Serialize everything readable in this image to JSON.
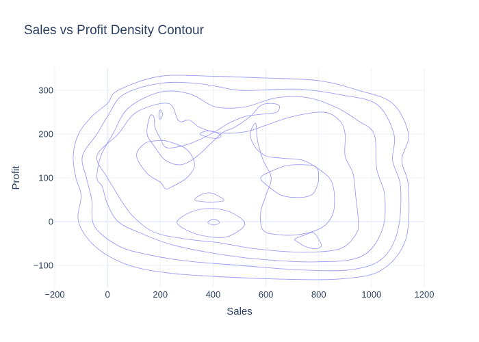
{
  "chart_data": {
    "type": "contour",
    "title": "Sales vs Profit Density Contour",
    "xlabel": "Sales",
    "ylabel": "Profit",
    "xlim": [
      -200,
      1200
    ],
    "ylim": [
      -150,
      350
    ],
    "x_ticks": [
      -200,
      0,
      200,
      400,
      600,
      800,
      1000,
      1200
    ],
    "y_ticks": [
      -100,
      0,
      100,
      200,
      300
    ],
    "x_tick_labels": [
      "−200",
      "0",
      "200",
      "400",
      "600",
      "800",
      "1000",
      "1200"
    ],
    "y_tick_labels": [
      "−100",
      "0",
      "100",
      "200",
      "300"
    ],
    "grid": true,
    "legend": "none",
    "line_color": "#9b9bf5",
    "contours": [
      {
        "level": 1,
        "closed": true,
        "points": [
          [
            -120,
            100
          ],
          [
            -130,
            150
          ],
          [
            -110,
            200
          ],
          [
            -60,
            240
          ],
          [
            0,
            270
          ],
          [
            40,
            300
          ],
          [
            200,
            332
          ],
          [
            400,
            332
          ],
          [
            600,
            328
          ],
          [
            800,
            322
          ],
          [
            950,
            300
          ],
          [
            1080,
            270
          ],
          [
            1140,
            200
          ],
          [
            1115,
            140
          ],
          [
            1140,
            80
          ],
          [
            1130,
            -40
          ],
          [
            1040,
            -110
          ],
          [
            900,
            -130
          ],
          [
            700,
            -132
          ],
          [
            400,
            -125
          ],
          [
            200,
            -115
          ],
          [
            60,
            -95
          ],
          [
            -50,
            -55
          ],
          [
            -110,
            0
          ],
          [
            -100,
            60
          ]
        ]
      },
      {
        "level": 2,
        "closed": true,
        "points": [
          [
            -80,
            100
          ],
          [
            -95,
            150
          ],
          [
            -40,
            200
          ],
          [
            0,
            240
          ],
          [
            60,
            290
          ],
          [
            200,
            316
          ],
          [
            350,
            315
          ],
          [
            500,
            300
          ],
          [
            640,
            302
          ],
          [
            740,
            302
          ],
          [
            880,
            290
          ],
          [
            1020,
            268
          ],
          [
            1085,
            200
          ],
          [
            1080,
            140
          ],
          [
            1110,
            80
          ],
          [
            1100,
            -20
          ],
          [
            1040,
            -85
          ],
          [
            920,
            -110
          ],
          [
            720,
            -110
          ],
          [
            500,
            -100
          ],
          [
            300,
            -90
          ],
          [
            150,
            -75
          ],
          [
            40,
            -55
          ],
          [
            -50,
            -10
          ],
          [
            -60,
            50
          ]
        ]
      },
      {
        "level": 3,
        "closed": true,
        "points": [
          [
            -40,
            100
          ],
          [
            -25,
            150
          ],
          [
            20,
            200
          ],
          [
            80,
            260
          ],
          [
            200,
            296
          ],
          [
            310,
            292
          ],
          [
            410,
            262
          ],
          [
            520,
            262
          ],
          [
            640,
            283
          ],
          [
            760,
            283
          ],
          [
            870,
            260
          ],
          [
            950,
            230
          ],
          [
            1010,
            200
          ],
          [
            1020,
            120
          ],
          [
            1050,
            60
          ],
          [
            1040,
            -20
          ],
          [
            960,
            -80
          ],
          [
            780,
            -92
          ],
          [
            560,
            -85
          ],
          [
            380,
            -70
          ],
          [
            240,
            -52
          ],
          [
            120,
            -25
          ],
          [
            40,
            0
          ],
          [
            0,
            40
          ],
          [
            -20,
            80
          ]
        ]
      },
      {
        "level": 4,
        "closed": true,
        "points": [
          [
            0,
            100
          ],
          [
            -40,
            150
          ],
          [
            40,
            200
          ],
          [
            110,
            250
          ],
          [
            230,
            270
          ],
          [
            270,
            230
          ],
          [
            310,
            232
          ],
          [
            350,
            215
          ],
          [
            420,
            203
          ],
          [
            520,
            205
          ],
          [
            600,
            220
          ],
          [
            700,
            240
          ],
          [
            820,
            250
          ],
          [
            880,
            230
          ],
          [
            900,
            200
          ],
          [
            900,
            150
          ],
          [
            930,
            110
          ],
          [
            940,
            60
          ],
          [
            950,
            0
          ],
          [
            940,
            -30
          ],
          [
            880,
            -62
          ],
          [
            740,
            -70
          ],
          [
            560,
            -62
          ],
          [
            420,
            -48
          ],
          [
            300,
            -40
          ],
          [
            180,
            -25
          ],
          [
            100,
            10
          ],
          [
            50,
            50
          ],
          [
            20,
            80
          ]
        ]
      },
      {
        "level": 5,
        "closed": true,
        "points": [
          [
            140,
            178
          ],
          [
            110,
            150
          ],
          [
            150,
            110
          ],
          [
            200,
            90
          ],
          [
            220,
            75
          ],
          [
            245,
            80
          ],
          [
            300,
            100
          ],
          [
            330,
            130
          ],
          [
            300,
            165
          ],
          [
            230,
            183
          ],
          [
            190,
            185
          ]
        ]
      },
      {
        "level": 5,
        "closed": true,
        "points": [
          [
            160,
            240
          ],
          [
            150,
            200
          ],
          [
            180,
            170
          ],
          [
            220,
            140
          ],
          [
            280,
            130
          ],
          [
            340,
            150
          ],
          [
            390,
            178
          ],
          [
            440,
            205
          ],
          [
            480,
            215
          ],
          [
            540,
            240
          ],
          [
            580,
            265
          ],
          [
            620,
            270
          ],
          [
            650,
            265
          ],
          [
            640,
            250
          ],
          [
            580,
            245
          ],
          [
            520,
            240
          ],
          [
            460,
            225
          ],
          [
            400,
            203
          ],
          [
            320,
            180
          ],
          [
            260,
            170
          ],
          [
            220,
            170
          ],
          [
            200,
            190
          ],
          [
            180,
            215
          ],
          [
            175,
            240
          ]
        ]
      },
      {
        "level": 5,
        "closed": true,
        "points": [
          [
            560,
            225
          ],
          [
            540,
            200
          ],
          [
            560,
            170
          ],
          [
            600,
            150
          ],
          [
            660,
            145
          ],
          [
            740,
            140
          ],
          [
            800,
            120
          ],
          [
            840,
            100
          ],
          [
            855,
            80
          ],
          [
            860,
            50
          ],
          [
            855,
            20
          ],
          [
            830,
            -5
          ],
          [
            790,
            -20
          ],
          [
            720,
            -30
          ],
          [
            650,
            -30
          ],
          [
            590,
            -20
          ],
          [
            580,
            20
          ],
          [
            600,
            60
          ],
          [
            620,
            100
          ],
          [
            590,
            140
          ],
          [
            570,
            180
          ],
          [
            565,
            205
          ]
        ]
      },
      {
        "level": 5,
        "closed": true,
        "points": [
          [
            265,
            -5
          ],
          [
            320,
            -25
          ],
          [
            390,
            -35
          ],
          [
            450,
            -35
          ],
          [
            500,
            -20
          ],
          [
            520,
            -5
          ],
          [
            500,
            10
          ],
          [
            450,
            25
          ],
          [
            390,
            30
          ],
          [
            330,
            25
          ],
          [
            280,
            10
          ]
        ]
      },
      {
        "level": 6,
        "closed": true,
        "points": [
          [
            196,
            235
          ],
          [
            205,
            237
          ],
          [
            208,
            248
          ],
          [
            200,
            255
          ],
          [
            195,
            248
          ]
        ]
      },
      {
        "level": 6,
        "closed": true,
        "points": [
          [
            350,
            200
          ],
          [
            380,
            193
          ],
          [
            410,
            190
          ],
          [
            430,
            195
          ],
          [
            410,
            204
          ],
          [
            375,
            207
          ]
        ]
      },
      {
        "level": 6,
        "closed": true,
        "points": [
          [
            330,
            50
          ],
          [
            370,
            45
          ],
          [
            410,
            45
          ],
          [
            440,
            48
          ],
          [
            430,
            55
          ],
          [
            395,
            65
          ],
          [
            360,
            63
          ]
        ]
      },
      {
        "level": 6,
        "closed": true,
        "points": [
          [
            580,
            100
          ],
          [
            620,
            115
          ],
          [
            680,
            128
          ],
          [
            740,
            130
          ],
          [
            790,
            125
          ],
          [
            800,
            100
          ],
          [
            790,
            75
          ],
          [
            770,
            60
          ],
          [
            720,
            55
          ],
          [
            660,
            60
          ],
          [
            610,
            80
          ]
        ]
      },
      {
        "level": 6,
        "closed": true,
        "points": [
          [
            380,
            -2
          ],
          [
            395,
            -7
          ],
          [
            410,
            -7
          ],
          [
            425,
            -2
          ],
          [
            410,
            5
          ],
          [
            395,
            5
          ]
        ]
      },
      {
        "level": 6,
        "closed": true,
        "points": [
          [
            710,
            -40
          ],
          [
            750,
            -30
          ],
          [
            780,
            -25
          ],
          [
            800,
            -40
          ],
          [
            810,
            -55
          ],
          [
            790,
            -62
          ],
          [
            750,
            -57
          ],
          [
            725,
            -48
          ]
        ]
      }
    ]
  }
}
